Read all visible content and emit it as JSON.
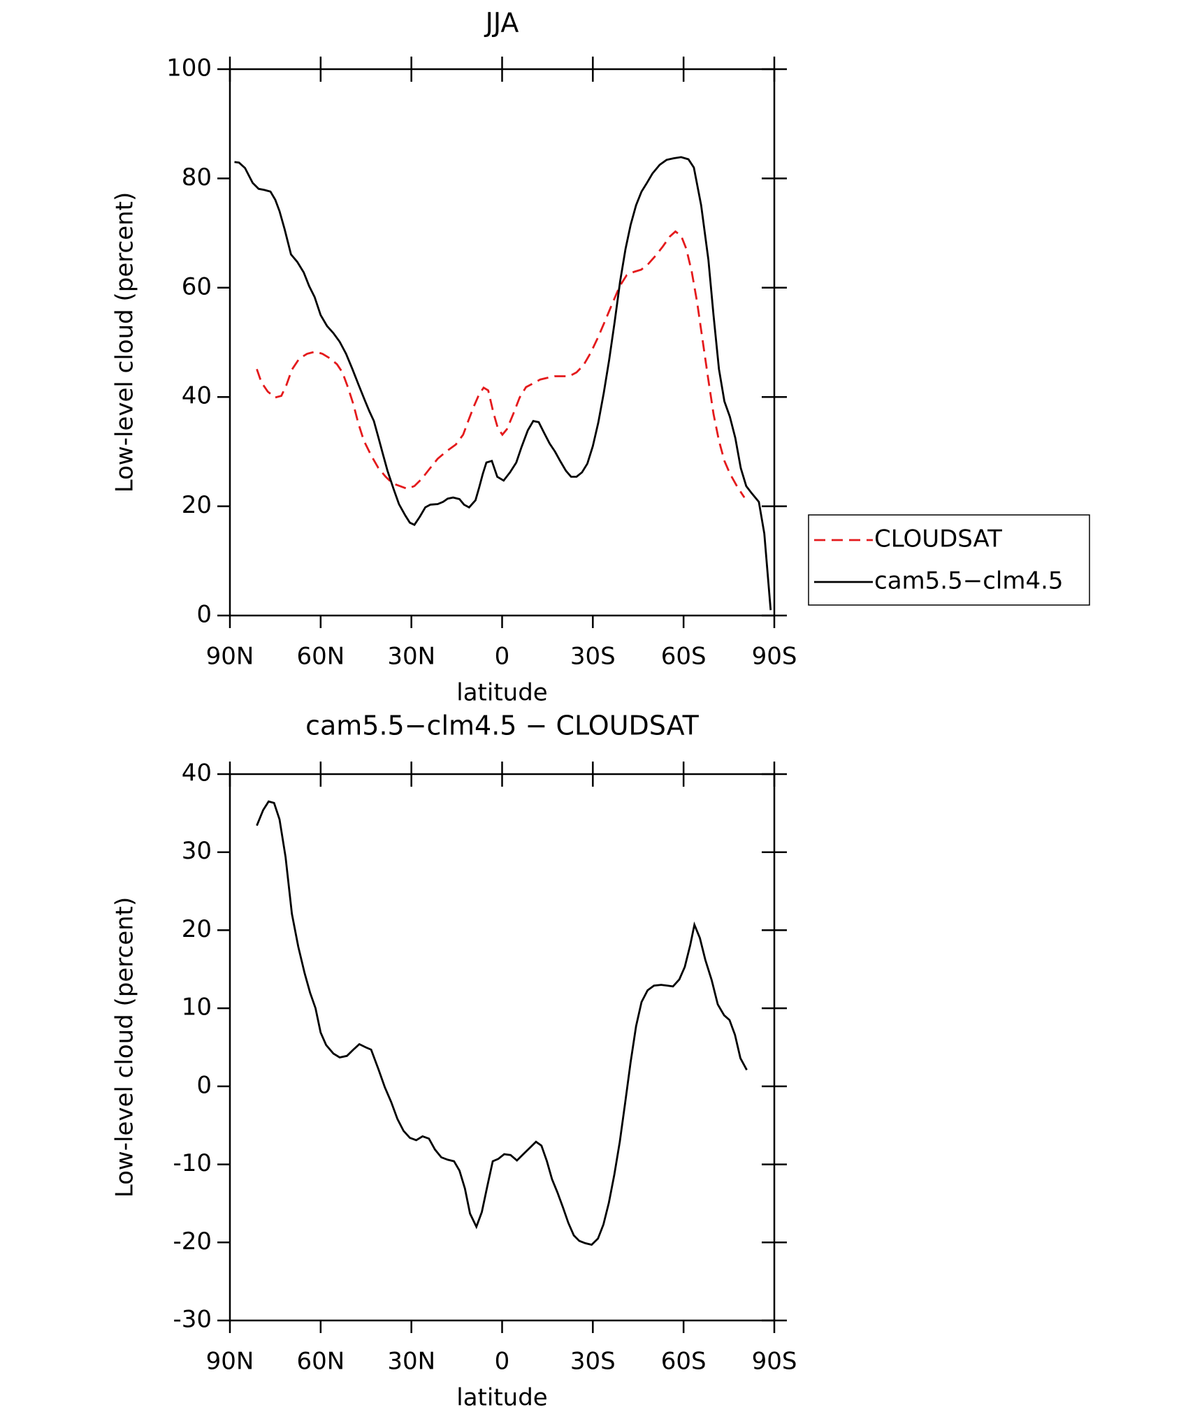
{
  "chart_data": [
    {
      "type": "line",
      "title": "JJA",
      "x_label": "latitude",
      "y_label": "Low-level cloud (percent)",
      "xlim": [
        90,
        -90
      ],
      "xticks": [
        {
          "value": 90,
          "label": "90N"
        },
        {
          "value": 60,
          "label": "60N"
        },
        {
          "value": 30,
          "label": "30N"
        },
        0,
        {
          "value": -30,
          "label": "30S"
        },
        {
          "value": -60,
          "label": "60S"
        },
        {
          "value": -90,
          "label": "90S"
        }
      ],
      "ylim": [
        0,
        100
      ],
      "yticks": [
        0,
        20,
        40,
        60,
        80,
        100
      ],
      "legend": "right",
      "series": [
        {
          "name": "CLOUDSAT",
          "color": "#e41a1c",
          "dashed": true,
          "x": [
            81.1,
            79.6,
            77.5,
            75.1,
            73,
            71.3,
            69.5,
            67.1,
            64.5,
            61.7,
            59.4,
            57,
            54.6,
            52.8,
            51,
            49.2,
            47.5,
            45.7,
            43.3,
            40.9,
            38.5,
            36.2,
            33.8,
            31.4,
            29,
            26.6,
            24.2,
            21.3,
            18.3,
            15.3,
            12.9,
            11.2,
            9.4,
            7.6,
            6.1,
            4.6,
            2.9,
            1.4,
            -0.1,
            -1.6,
            -3.7,
            -5.8,
            -7.9,
            -10.3,
            -12.6,
            -15,
            -17.5,
            -19.8,
            -22.2,
            -24.6,
            -26.9,
            -29.3,
            -31.7,
            -34.1,
            -36.5,
            -38.9,
            -41.2,
            -43.6,
            -46,
            -48.4,
            -50.8,
            -53.1,
            -55.5,
            -57.3,
            -59.2,
            -60.9,
            -62.7,
            -64.5,
            -66.3,
            -68.1,
            -69.9,
            -71.7,
            -73.5,
            -75.3,
            -77.7,
            -80.1
          ],
          "values": [
            45.1,
            42.7,
            41,
            39.9,
            40.2,
            42.2,
            45,
            47,
            47.9,
            48.3,
            47.9,
            47.1,
            46,
            44.5,
            41.8,
            38.7,
            35.1,
            32,
            29.3,
            27,
            25.4,
            24.2,
            23.7,
            23.2,
            23.7,
            25,
            26.7,
            28.7,
            30.1,
            31.3,
            33.1,
            35.6,
            38.2,
            40.5,
            41.7,
            41.2,
            37.2,
            34.3,
            33.1,
            34.1,
            36.9,
            39.9,
            41.8,
            42.5,
            43.2,
            43.5,
            43.8,
            43.8,
            43.8,
            44.5,
            45.8,
            48.1,
            50.9,
            54,
            57.2,
            60.3,
            62.3,
            62.9,
            63.3,
            64.4,
            65.9,
            67.5,
            69.4,
            70.3,
            69.5,
            67.1,
            62.9,
            57.3,
            50.4,
            43.5,
            36.9,
            32,
            28.3,
            26,
            23.6,
            21.6
          ]
        },
        {
          "name": "cam5.5−clm4.5",
          "color": "#000000",
          "dashed": false,
          "x": [
            88.5,
            87,
            85,
            82.5,
            80.5,
            78.7,
            76.6,
            75,
            73.6,
            71.9,
            69.8,
            67.7,
            65.6,
            63.8,
            62,
            60,
            57.9,
            55.8,
            53.7,
            51.6,
            49.5,
            47.5,
            45.4,
            43.9,
            42.4,
            40.9,
            39.4,
            37.9,
            35.9,
            34.1,
            32,
            30.5,
            29,
            27.2,
            25.4,
            23.7,
            21.3,
            19.5,
            18,
            16.2,
            14.1,
            12.6,
            10.9,
            8.8,
            7.6,
            6.4,
            5.2,
            3.4,
            1.6,
            -0.5,
            -2.6,
            -4.7,
            -6.4,
            -8.5,
            -10.3,
            -12.1,
            -13.9,
            -15.7,
            -17.5,
            -19.3,
            -21.1,
            -22.8,
            -24.6,
            -26.4,
            -28.2,
            -30,
            -31.8,
            -33.6,
            -35.4,
            -37.2,
            -39,
            -40.8,
            -42.5,
            -44.3,
            -46.1,
            -47.9,
            -49.7,
            -52.1,
            -54.4,
            -56.8,
            -59.2,
            -61.6,
            -63.4,
            -65.8,
            -68.2,
            -69.9,
            -71.7,
            -73.5,
            -75.3,
            -77.1,
            -78.9,
            -80.7,
            -82.5,
            -84.9,
            -86.7,
            -88.8
          ],
          "values": [
            83,
            82.9,
            81.9,
            79.2,
            78.1,
            77.9,
            77.6,
            76.1,
            74,
            70.7,
            66.1,
            64.7,
            62.8,
            60.3,
            58.3,
            55,
            53,
            51.7,
            50.1,
            47.9,
            45.1,
            42.3,
            39.4,
            37.4,
            35.6,
            32.6,
            29.5,
            26.5,
            23.2,
            20.4,
            18.3,
            17,
            16.6,
            18.1,
            19.8,
            20.3,
            20.4,
            20.8,
            21.4,
            21.6,
            21.3,
            20.3,
            19.8,
            21.1,
            23.4,
            25.9,
            28,
            28.3,
            25.4,
            24.7,
            26.2,
            28,
            30.8,
            33.9,
            35.6,
            35.4,
            33.4,
            31.5,
            30,
            28.2,
            26.5,
            25.4,
            25.4,
            26.2,
            27.8,
            31,
            35.3,
            40.7,
            46.8,
            53.7,
            61.1,
            67.1,
            71.5,
            75.1,
            77.6,
            79.2,
            80.9,
            82.5,
            83.4,
            83.7,
            83.9,
            83.5,
            82,
            75.1,
            65.1,
            55,
            45.1,
            39.2,
            36.4,
            32.5,
            27,
            23.7,
            22.4,
            20.8,
            15,
            1
          ]
        }
      ]
    },
    {
      "type": "line",
      "title": "cam5.5−clm4.5 − CLOUDSAT",
      "x_label": "latitude",
      "y_label": "Low-level cloud (percent)",
      "xlim": [
        90,
        -90
      ],
      "xticks": [
        {
          "value": 90,
          "label": "90N"
        },
        {
          "value": 60,
          "label": "60N"
        },
        {
          "value": 30,
          "label": "30N"
        },
        0,
        {
          "value": -30,
          "label": "30S"
        },
        {
          "value": -60,
          "label": "60S"
        },
        {
          "value": -90,
          "label": "90S"
        }
      ],
      "ylim": [
        -30,
        40
      ],
      "yticks": [
        -30,
        -20,
        -10,
        0,
        10,
        20,
        30,
        40
      ],
      "series": [
        {
          "color": "#000000",
          "dashed": false,
          "x": [
            81.1,
            79,
            77.2,
            75.4,
            73.6,
            71.6,
            69.5,
            67.4,
            65.3,
            63.5,
            61.7,
            60,
            58.2,
            55.8,
            53.7,
            51.3,
            49.2,
            47.2,
            45.1,
            43.3,
            40.9,
            38.8,
            36.7,
            34.6,
            32.6,
            30.5,
            28.4,
            26.3,
            24.2,
            22.2,
            20.1,
            18,
            15.9,
            14.1,
            12.3,
            10.6,
            8.5,
            6.7,
            4.9,
            3.1,
            1.3,
            -0.7,
            -2.8,
            -4.9,
            -7,
            -9.1,
            -11.2,
            -13,
            -14.8,
            -16.5,
            -18.3,
            -20.1,
            -21.9,
            -23.7,
            -25.5,
            -27.5,
            -29.6,
            -31.7,
            -33.5,
            -35.3,
            -37.1,
            -38.9,
            -40.7,
            -42.5,
            -44.3,
            -46.1,
            -48.1,
            -50.2,
            -52.6,
            -54.7,
            -56.5,
            -58.6,
            -60.4,
            -62.2,
            -63.6,
            -65.4,
            -67.2,
            -69.3,
            -71.3,
            -73.4,
            -75.2,
            -77,
            -78.8,
            -80.9
          ],
          "values": [
            33.4,
            35.4,
            36.5,
            36.3,
            34.2,
            29.4,
            22.1,
            17.9,
            14.5,
            12,
            10,
            6.9,
            5.3,
            4.2,
            3.7,
            3.9,
            4.7,
            5.4,
            5,
            4.7,
            2.2,
            -0.1,
            -2,
            -4.2,
            -5.7,
            -6.6,
            -6.9,
            -6.4,
            -6.7,
            -8.1,
            -9.1,
            -9.4,
            -9.6,
            -10.8,
            -13.1,
            -16.3,
            -18,
            -16.1,
            -12.8,
            -9.6,
            -9.3,
            -8.7,
            -8.8,
            -9.5,
            -8.7,
            -7.9,
            -7.1,
            -7.6,
            -9.6,
            -11.9,
            -13.6,
            -15.5,
            -17.5,
            -19.1,
            -19.8,
            -20.1,
            -20.3,
            -19.5,
            -17.7,
            -14.9,
            -11.3,
            -7.1,
            -2.1,
            3.1,
            7.7,
            10.8,
            12.3,
            12.9,
            13,
            12.9,
            12.8,
            13.7,
            15.3,
            18.1,
            20.7,
            19,
            16.2,
            13.6,
            10.5,
            9.1,
            8.5,
            6.6,
            3.6,
            2.1
          ]
        }
      ]
    }
  ]
}
